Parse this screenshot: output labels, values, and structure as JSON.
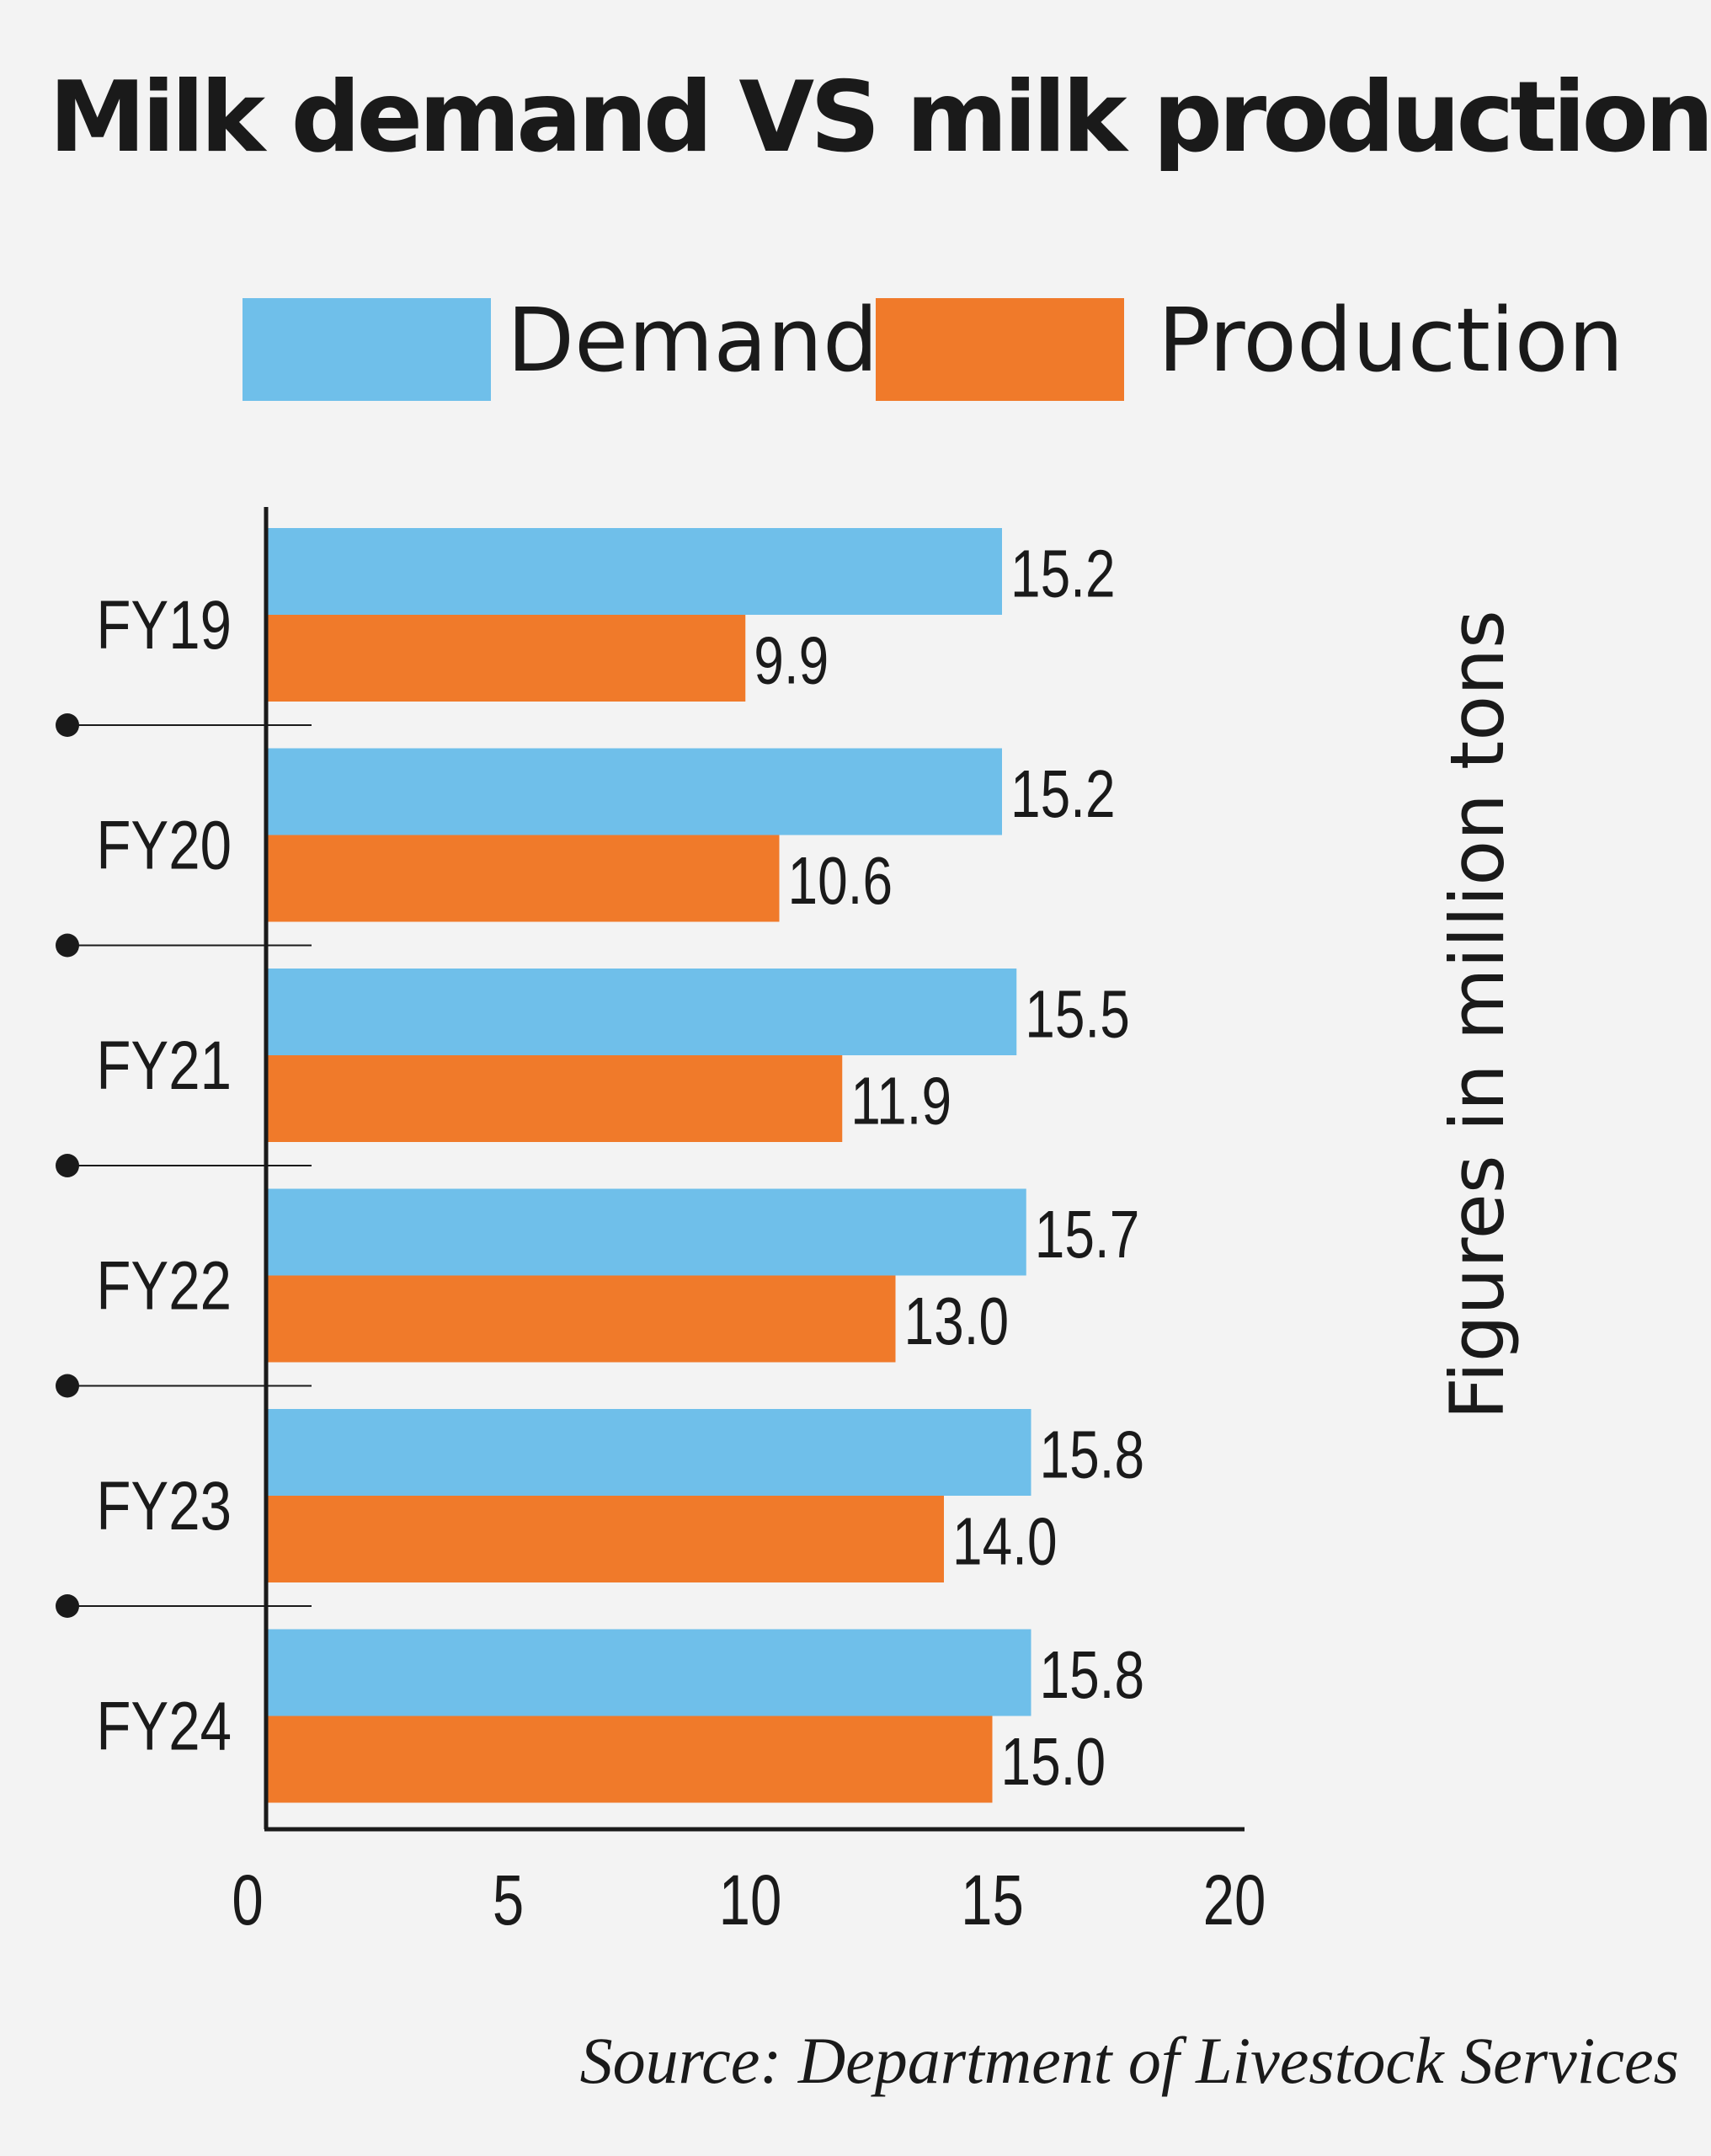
{
  "colors": {
    "demand": "#6fbfea",
    "production": "#f07a2a",
    "text": "#1a1a1a",
    "background": "#f3f3f3"
  },
  "chart_data": {
    "type": "bar",
    "orientation": "horizontal",
    "title": "Milk demand VS milk production",
    "categories": [
      "FY19",
      "FY20",
      "FY21",
      "FY22",
      "FY23",
      "FY24"
    ],
    "series": [
      {
        "name": "Demand",
        "values": [
          15.2,
          15.2,
          15.5,
          15.7,
          15.8,
          15.8
        ]
      },
      {
        "name": "Production",
        "values": [
          9.9,
          10.6,
          11.9,
          13.0,
          14.0,
          15.0
        ]
      }
    ],
    "value_labels": [
      [
        "15.2",
        "15.2",
        "15.5",
        "15.7",
        "15.8",
        "15.8"
      ],
      [
        "9.9",
        "10.6",
        "11.9",
        "13.0",
        "14.0",
        "15.0"
      ]
    ],
    "xlim": [
      0,
      20
    ],
    "xticks": [
      "0",
      "5",
      "10",
      "15",
      "20"
    ],
    "xlabel": "",
    "ylabel": "Figures in million tons",
    "legend_position": "top",
    "grid": false,
    "source": "Source: Department of Livestock Services"
  }
}
